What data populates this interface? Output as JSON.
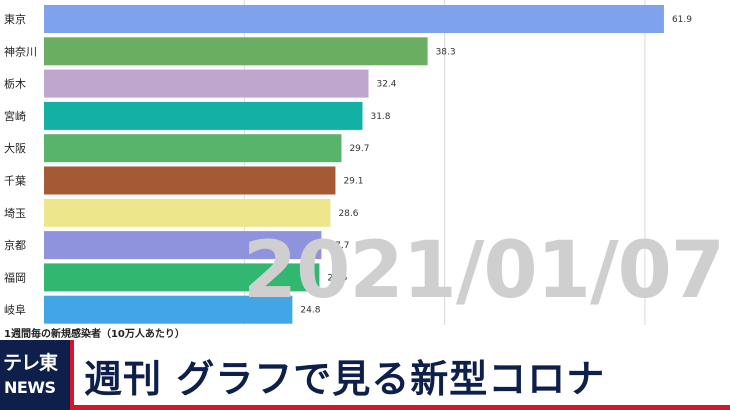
{
  "chart_data": {
    "type": "bar",
    "orientation": "horizontal",
    "categories": [
      "東京",
      "神奈川",
      "栃木",
      "宮崎",
      "大阪",
      "千葉",
      "埼玉",
      "京都",
      "福岡",
      "岐阜"
    ],
    "values": [
      61.9,
      38.3,
      32.4,
      31.8,
      29.7,
      29.1,
      28.6,
      27.7,
      27.5,
      24.8
    ],
    "value_labels": [
      "61.9",
      "38.3",
      "32.4",
      "31.8",
      "29.7",
      "29.1",
      "28.6",
      "27.7",
      "27.5",
      "24.8"
    ],
    "colors": [
      "#7ea2ee",
      "#6aae62",
      "#bfa6cf",
      "#13b0a6",
      "#58b46a",
      "#a65a33",
      "#ede68a",
      "#8f93de",
      "#32b770",
      "#42a6e6"
    ],
    "xlim": [
      0,
      65
    ],
    "gridlines_at": [
      20,
      40,
      60
    ],
    "grid": true,
    "xlabel": "",
    "ylabel": "",
    "caption": "1週間毎の新規感染者（10万人あたり）",
    "date": "2021/01/07"
  },
  "banner": {
    "logo_top": "テレ東",
    "logo_bottom": "NEWS",
    "title": "週刊 グラフで見る新型コロナ",
    "colors": {
      "navy": "#0d1f4a",
      "red": "#d8142a"
    }
  }
}
